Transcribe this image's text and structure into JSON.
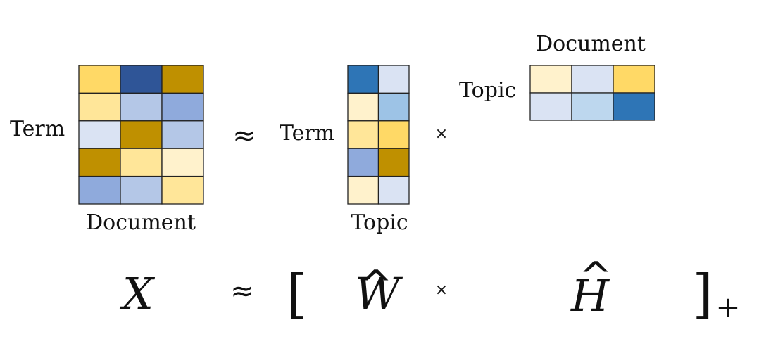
{
  "palette": {
    "Y1": "#fff2cc",
    "Y2": "#ffe699",
    "Y3": "#ffd966",
    "G": "#bf9000",
    "B0": "#dae3f3",
    "B1": "#bdd7ee",
    "B2": "#b4c7e7",
    "B3": "#9dc3e6",
    "B4": "#8faadc",
    "B5": "#2e75b6",
    "B6": "#2f5597"
  },
  "matrices": {
    "X": {
      "row_label": "Term",
      "col_label": "Document",
      "cells": [
        [
          "Y3",
          "B6",
          "G"
        ],
        [
          "Y2",
          "B2",
          "B4"
        ],
        [
          "B0",
          "G",
          "B2"
        ],
        [
          "G",
          "Y2",
          "Y1"
        ],
        [
          "B4",
          "B2",
          "Y2"
        ]
      ]
    },
    "W": {
      "row_label": "Term",
      "col_label": "Topic",
      "cells": [
        [
          "B5",
          "B0"
        ],
        [
          "Y1",
          "B3"
        ],
        [
          "Y2",
          "Y3"
        ],
        [
          "B4",
          "G"
        ],
        [
          "Y1",
          "B0"
        ]
      ]
    },
    "H": {
      "row_label": "Topic",
      "col_label": "Document",
      "cells": [
        [
          "Y1",
          "B0",
          "Y3"
        ],
        [
          "B0",
          "B1",
          "B5"
        ]
      ]
    }
  },
  "operators": {
    "approx": "≈",
    "times": "×"
  },
  "equation": {
    "x_symbol": "X",
    "w_symbol": "W",
    "h_symbol": "H",
    "hat": "^",
    "open_bracket": "[",
    "close_bracket": "]",
    "plus_subscript": "+"
  }
}
